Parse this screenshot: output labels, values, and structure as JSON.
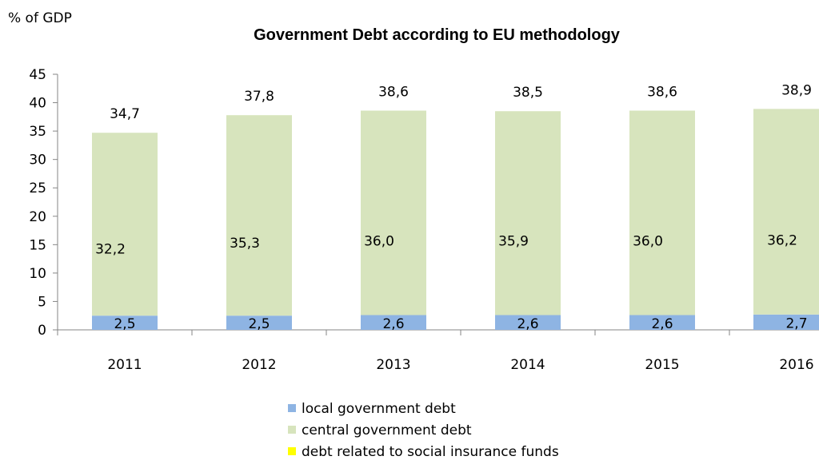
{
  "chart_data": {
    "type": "bar",
    "stacked": true,
    "title": "Government Debt according to EU methodology",
    "ylabel": "% of GDP",
    "xlabel": "",
    "ylim": [
      0,
      45
    ],
    "yticks": [
      0,
      5,
      10,
      15,
      20,
      25,
      30,
      35,
      40,
      45
    ],
    "grid": false,
    "legend_position": "bottom",
    "categories": [
      "2011",
      "2012",
      "2013",
      "2014",
      "2015",
      "2016"
    ],
    "series": [
      {
        "name": "local government debt",
        "color": "#8EB4E3",
        "values": [
          2.5,
          2.5,
          2.6,
          2.6,
          2.6,
          2.7
        ],
        "labels": [
          "2,5",
          "2,5",
          "2,6",
          "2,6",
          "2,6",
          "2,7"
        ]
      },
      {
        "name": "central government debt",
        "color": "#D7E4BD",
        "values": [
          32.2,
          35.3,
          36.0,
          35.9,
          36.0,
          36.2
        ],
        "labels": [
          "32,2",
          "35,3",
          "36,0",
          "35,9",
          "36,0",
          "36,2"
        ]
      },
      {
        "name": "debt related to social insurance funds",
        "color": "#FFFF00",
        "values": [
          0,
          0,
          0,
          0,
          0,
          0
        ],
        "labels": []
      }
    ],
    "totals": [
      34.7,
      37.8,
      38.6,
      38.5,
      38.6,
      38.9
    ],
    "total_labels": [
      "34,7",
      "37,8",
      "38,6",
      "38,5",
      "38,6",
      "38,9"
    ]
  }
}
